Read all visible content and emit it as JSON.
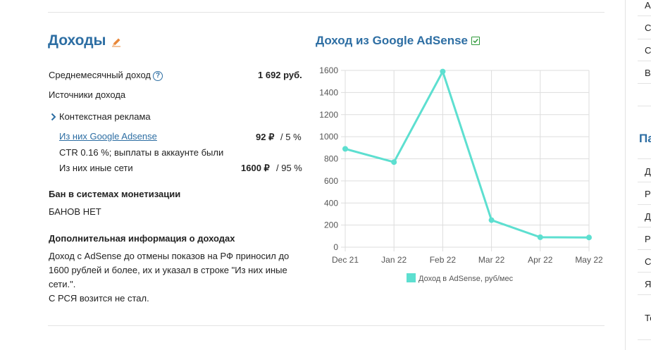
{
  "income": {
    "title": "Доходы",
    "avg_label": "Среднемесячный доход",
    "avg_value": "1 692 руб.",
    "sources_label": "Источники дохода",
    "context_label": "Контекстная реклама",
    "adsense_label": "Из них Google Adsense",
    "adsense_amount": "92 ₽",
    "adsense_percent": "/ 5 %",
    "ctr_text": "CTR 0.16 %; выплаты в аккаунте были",
    "other_label": "Из них иные сети",
    "other_amount": "1600 ₽",
    "other_percent": "/ 95 %",
    "ban_title": "Бан в системах монетизации",
    "ban_value": "БАНОВ НЕТ",
    "extra_title": "Дополнительная информация о доходах",
    "extra_lines": [
      "Доход с AdSense до отмены показов на РФ приносил до",
      "1600 рублей и более, их и указал в строке \"Из них иные",
      "сети.\".",
      "С РСЯ возится не стал."
    ]
  },
  "adsense_section": {
    "title": "Доход из Google AdSense"
  },
  "chart_data": {
    "type": "line",
    "x": [
      "Dec 21",
      "Jan 22",
      "Feb 22",
      "Mar 22",
      "Apr 22",
      "May 22"
    ],
    "series": [
      {
        "name": "Доход в AdSense, руб/мес",
        "values": [
          890,
          770,
          1590,
          245,
          90,
          88
        ]
      }
    ],
    "yticks": [
      "0",
      "200",
      "400",
      "600",
      "800",
      "1000",
      "1200",
      "1400",
      "1600"
    ],
    "ylim": [
      0,
      1600
    ],
    "grid": true,
    "legend": "bottom",
    "color": "#5ddfd0"
  },
  "sidebar": {
    "letters_top": [
      "А",
      "С",
      "С",
      "В"
    ],
    "title_fragment": "Па",
    "letters_bottom": [
      "Д",
      "Р",
      "Д",
      "Р",
      "С",
      "Я",
      "Те"
    ]
  },
  "colors": {
    "accent": "#2d6ea3",
    "pencil": "#e8873a",
    "check": "#2f9a3a"
  }
}
